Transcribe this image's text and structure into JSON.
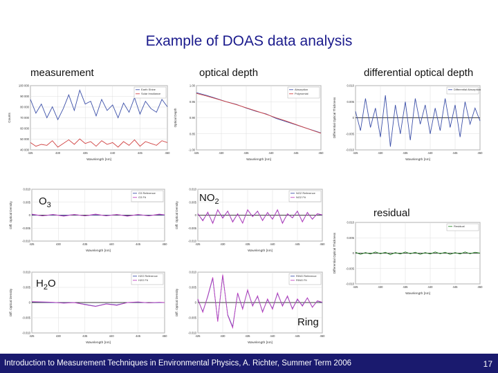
{
  "slide": {
    "title": "Example of DOAS data analysis",
    "labels": {
      "measurement": "measurement",
      "optical_depth": "optical depth",
      "differential": "differential optical depth",
      "o3_main": "O",
      "o3_sub": "3",
      "no2_main": "NO",
      "no2_sub": "2",
      "h2o_pre": "H",
      "h2o_sub": "2",
      "h2o_post": "O",
      "residual": "residual",
      "ring": "Ring"
    },
    "footer": "Introduction to Measurement Techniques in Environmental Physics, A. Richter, Summer Term 2006",
    "page_number": "17"
  },
  "colors": {
    "title": "#1a1a8c",
    "footer_bg": "#1a1a6e",
    "blue": "#3b4fa8",
    "red": "#d04040",
    "pink": "#c040c0",
    "green": "#2a8a2a"
  },
  "chart_data": [
    {
      "id": "measurement",
      "type": "line",
      "xlabel": "Wavelength [nm]",
      "ylabel": "Counts",
      "xlim": [
        425,
        450
      ],
      "ylim": [
        35000,
        105000
      ],
      "xticks": [
        "425",
        "430",
        "435",
        "440",
        "445",
        "450"
      ],
      "yticks": [
        "100 000",
        "90 000",
        "80 000",
        "70 000",
        "60 000",
        "50 000",
        "40 000"
      ],
      "legend": [
        "Earth Shine",
        "Solar Irradiance"
      ],
      "series": [
        {
          "name": "Earth Shine",
          "color": "#3b4fa8",
          "x": [
            425,
            426,
            427,
            428,
            429,
            430,
            431,
            432,
            433,
            434,
            435,
            436,
            437,
            438,
            439,
            440,
            441,
            442,
            443,
            444,
            445,
            446,
            447,
            448,
            449,
            450
          ],
          "y": [
            90000,
            75000,
            85000,
            70000,
            82000,
            68000,
            80000,
            95000,
            78000,
            100000,
            85000,
            88000,
            72000,
            90000,
            78000,
            84000,
            70000,
            86000,
            76000,
            92000,
            74000,
            88000,
            80000,
            76000,
            90000,
            82000
          ]
        },
        {
          "name": "Solar Irradiance",
          "color": "#d04040",
          "x": [
            425,
            426,
            427,
            428,
            429,
            430,
            431,
            432,
            433,
            434,
            435,
            436,
            437,
            438,
            439,
            440,
            441,
            442,
            443,
            444,
            445,
            446,
            447,
            448,
            449,
            450
          ],
          "y": [
            43000,
            39000,
            41000,
            40000,
            45000,
            38000,
            42000,
            46000,
            41000,
            47000,
            42000,
            44000,
            39000,
            45000,
            41000,
            43000,
            38000,
            44000,
            40000,
            46000,
            39000,
            44000,
            42000,
            40000,
            45000,
            43000
          ]
        }
      ]
    },
    {
      "id": "optical_depth",
      "type": "line",
      "xlabel": "Wavelength [nm]",
      "ylabel": "Optical Depth",
      "xlim": [
        425,
        450
      ],
      "ylim": [
        -1.0,
        1.0
      ],
      "xticks": [
        "425",
        "430",
        "435",
        "440",
        "445",
        "450"
      ],
      "yticks": [
        "1.00",
        "0.95",
        "0.90",
        "0.85",
        "-1.00"
      ],
      "legend": [
        "Absorption",
        "Polynomial"
      ],
      "series": [
        {
          "name": "Absorption",
          "color": "#3b4fa8",
          "x": [
            425,
            427,
            429,
            431,
            433,
            435,
            437,
            439,
            441,
            443,
            445,
            447,
            449,
            450
          ],
          "y": [
            0.78,
            0.7,
            0.6,
            0.5,
            0.42,
            0.3,
            0.2,
            0.12,
            -0.02,
            -0.12,
            -0.22,
            -0.32,
            -0.42,
            -0.47
          ]
        },
        {
          "name": "Polynomial",
          "color": "#d04040",
          "x": [
            425,
            427,
            429,
            431,
            433,
            435,
            437,
            439,
            441,
            443,
            445,
            447,
            449,
            450
          ],
          "y": [
            0.76,
            0.68,
            0.59,
            0.5,
            0.41,
            0.31,
            0.21,
            0.11,
            0.0,
            -0.1,
            -0.21,
            -0.32,
            -0.43,
            -0.48
          ]
        }
      ]
    },
    {
      "id": "differential",
      "type": "line",
      "xlabel": "Wavelength [nm]",
      "ylabel": "Differential Optical Thickness",
      "xlim": [
        425,
        450
      ],
      "ylim": [
        -0.01,
        0.01
      ],
      "xticks": [
        "425",
        "430",
        "435",
        "440",
        "445",
        "450"
      ],
      "yticks": [
        "0.010",
        "0.005",
        "0",
        "-0.005",
        "-0.010"
      ],
      "legend": [
        "Differential Absorption"
      ],
      "series": [
        {
          "name": "Differential Absorption",
          "color": "#3b4fa8",
          "x": [
            425,
            426,
            427,
            428,
            429,
            430,
            431,
            432,
            433,
            434,
            435,
            436,
            437,
            438,
            439,
            440,
            441,
            442,
            443,
            444,
            445,
            446,
            447,
            448,
            449,
            450
          ],
          "y": [
            0.002,
            -0.004,
            0.006,
            -0.003,
            0.003,
            -0.006,
            0.007,
            -0.009,
            0.004,
            -0.005,
            0.005,
            -0.007,
            0.006,
            -0.002,
            0.004,
            -0.005,
            0.003,
            -0.004,
            0.006,
            -0.003,
            0.004,
            -0.006,
            0.005,
            -0.002,
            0.003,
            -0.001
          ]
        }
      ]
    },
    {
      "id": "o3",
      "type": "line",
      "xlabel": "Wavelength [nm]",
      "ylabel": "Diff. Optical Density",
      "xlim": [
        425,
        450
      ],
      "ylim": [
        -0.01,
        0.01
      ],
      "xticks": [
        "425",
        "430",
        "435",
        "440",
        "445",
        "450"
      ],
      "yticks": [
        "0.010",
        "0.005",
        "0",
        "-0.005",
        "-0.010"
      ],
      "legend": [
        "O3 Reference",
        "O3 Fit"
      ],
      "series": [
        {
          "name": "O3 Reference",
          "color": "#3b4fa8",
          "x": [
            425,
            427,
            429,
            431,
            433,
            435,
            437,
            439,
            441,
            443,
            445,
            447,
            449,
            450
          ],
          "y": [
            0.0002,
            -0.0002,
            0.0001,
            -0.0001,
            0.0002,
            -0.0002,
            0.0001,
            -0.0001,
            0.0002,
            -0.0002,
            0.0001,
            -0.0001,
            0.0002,
            0.0
          ]
        },
        {
          "name": "O3 Fit",
          "color": "#c040c0",
          "x": [
            425,
            427,
            429,
            431,
            433,
            435,
            437,
            439,
            441,
            443,
            445,
            447,
            449,
            450
          ],
          "y": [
            0.0004,
            -0.0003,
            0.0003,
            -0.0004,
            0.0003,
            -0.0003,
            0.0004,
            -0.0003,
            0.0003,
            -0.0004,
            0.0003,
            -0.0003,
            0.0004,
            0.0001
          ]
        }
      ]
    },
    {
      "id": "no2",
      "type": "line",
      "xlabel": "Wavelength [nm]",
      "ylabel": "Diff. Optical Density",
      "xlim": [
        425,
        450
      ],
      "ylim": [
        -0.01,
        0.01
      ],
      "xticks": [
        "425",
        "430",
        "435",
        "440",
        "445",
        "450"
      ],
      "yticks": [
        "0.010",
        "0.005",
        "0",
        "-0.005",
        "-0.010"
      ],
      "legend": [
        "NO2 Reference",
        "NO2 Fit"
      ],
      "series": [
        {
          "name": "NO2 Reference",
          "color": "#3b4fa8",
          "x": [
            425,
            426,
            427,
            428,
            429,
            430,
            431,
            432,
            433,
            434,
            435,
            436,
            437,
            438,
            439,
            440,
            441,
            442,
            443,
            444,
            445,
            446,
            447,
            448,
            449,
            450
          ],
          "y": [
            0.0005,
            -0.002,
            0.001,
            -0.003,
            0.002,
            -0.001,
            0.0015,
            -0.0025,
            0.0005,
            -0.003,
            0.002,
            -0.0005,
            0.0015,
            -0.002,
            0.001,
            -0.0015,
            0.002,
            -0.003,
            0.0005,
            -0.001,
            0.0015,
            -0.0025,
            0.001,
            -0.0015,
            0.0005,
            0.0
          ]
        },
        {
          "name": "NO2 Fit",
          "color": "#c040c0",
          "x": [
            425,
            426,
            427,
            428,
            429,
            430,
            431,
            432,
            433,
            434,
            435,
            436,
            437,
            438,
            439,
            440,
            441,
            442,
            443,
            444,
            445,
            446,
            447,
            448,
            449,
            450
          ],
          "y": [
            0.0006,
            -0.0022,
            0.0012,
            -0.0032,
            0.0021,
            -0.0012,
            0.0016,
            -0.0027,
            0.0006,
            -0.0031,
            0.0021,
            -0.0006,
            0.0016,
            -0.0021,
            0.0011,
            -0.0016,
            0.0021,
            -0.0032,
            0.0006,
            -0.0011,
            0.0016,
            -0.0026,
            0.0011,
            -0.0016,
            0.0006,
            0.0001
          ]
        }
      ]
    },
    {
      "id": "residual",
      "type": "line",
      "xlabel": "Wavelength [nm]",
      "ylabel": "Differential Optical Thickness",
      "xlim": [
        425,
        450
      ],
      "ylim": [
        -0.01,
        0.01
      ],
      "xticks": [
        "425",
        "430",
        "435",
        "440",
        "445",
        "450"
      ],
      "yticks": [
        "0.010",
        "0.005",
        "0",
        "-0.005",
        "-0.010"
      ],
      "legend": [
        "Residual"
      ],
      "series": [
        {
          "name": "Residual",
          "color": "#2a8a2a",
          "x": [
            425,
            426,
            427,
            428,
            429,
            430,
            431,
            432,
            433,
            434,
            435,
            436,
            437,
            438,
            439,
            440,
            441,
            442,
            443,
            444,
            445,
            446,
            447,
            448,
            449,
            450
          ],
          "y": [
            0.0003,
            -0.0004,
            0.0002,
            -0.0003,
            0.0004,
            -0.0002,
            0.0003,
            -0.0005,
            0.0002,
            -0.0003,
            0.0004,
            -0.0002,
            0.0003,
            -0.0004,
            0.0002,
            -0.0003,
            0.0004,
            -0.0002,
            0.0003,
            -0.0004,
            0.0002,
            -0.0003,
            0.0004,
            -0.0002,
            0.0003,
            0.0
          ]
        }
      ]
    },
    {
      "id": "h2o",
      "type": "line",
      "xlabel": "Wavelength [nm]",
      "ylabel": "Diff. Optical Density",
      "xlim": [
        425,
        450
      ],
      "ylim": [
        -0.01,
        0.01
      ],
      "xticks": [
        "425",
        "430",
        "435",
        "440",
        "445",
        "450"
      ],
      "yticks": [
        "0.010",
        "0.005",
        "0",
        "-0.005",
        "-0.010"
      ],
      "legend": [
        "H2O Reference",
        "H2O Fit"
      ],
      "series": [
        {
          "name": "H2O Reference",
          "color": "#3b4fa8",
          "x": [
            425,
            427,
            429,
            431,
            433,
            435,
            437,
            439,
            441,
            443,
            445,
            447,
            449,
            450
          ],
          "y": [
            0.0002,
            0.0001,
            0.0,
            -0.0001,
            0.0,
            -0.0006,
            -0.0012,
            -0.0004,
            -0.0008,
            0.0,
            0.0001,
            -0.0001,
            0.0,
            0.0
          ]
        },
        {
          "name": "H2O Fit",
          "color": "#c040c0",
          "x": [
            425,
            427,
            429,
            431,
            433,
            435,
            437,
            439,
            441,
            443,
            445,
            447,
            449,
            450
          ],
          "y": [
            0.0003,
            0.0002,
            0.0001,
            -0.0002,
            0.0,
            -0.0007,
            -0.0013,
            -0.0005,
            -0.0009,
            0.0,
            0.0002,
            -0.0001,
            0.0001,
            0.0
          ]
        }
      ]
    },
    {
      "id": "ring",
      "type": "line",
      "xlabel": "Wavelength [nm]",
      "ylabel": "Diff. Optical Density",
      "xlim": [
        425,
        450
      ],
      "ylim": [
        -0.01,
        0.01
      ],
      "xticks": [
        "425",
        "430",
        "435",
        "440",
        "445",
        "450"
      ],
      "yticks": [
        "0.010",
        "0.005",
        "0",
        "-0.005",
        "-0.010"
      ],
      "legend": [
        "RING Reference",
        "RING Fit"
      ],
      "series": [
        {
          "name": "RING Reference",
          "color": "#3b4fa8",
          "x": [
            425,
            426,
            427,
            428,
            429,
            430,
            431,
            432,
            433,
            434,
            435,
            436,
            437,
            438,
            439,
            440,
            441,
            442,
            443,
            444,
            445,
            446,
            447,
            448,
            449,
            450
          ],
          "y": [
            0.001,
            -0.003,
            0.002,
            0.008,
            -0.006,
            0.009,
            -0.004,
            -0.008,
            0.003,
            -0.002,
            0.004,
            -0.001,
            0.002,
            -0.003,
            0.001,
            -0.002,
            0.003,
            -0.001,
            0.002,
            -0.002,
            0.001,
            -0.001,
            0.0015,
            -0.0015,
            0.0005,
            0.0
          ]
        },
        {
          "name": "RING Fit",
          "color": "#c040c0",
          "x": [
            425,
            426,
            427,
            428,
            429,
            430,
            431,
            432,
            433,
            434,
            435,
            436,
            437,
            438,
            439,
            440,
            441,
            442,
            443,
            444,
            445,
            446,
            447,
            448,
            449,
            450
          ],
          "y": [
            0.0012,
            -0.0032,
            0.0022,
            0.0083,
            -0.0063,
            0.0092,
            -0.0042,
            -0.0083,
            0.0032,
            -0.0022,
            0.0042,
            -0.0012,
            0.0022,
            -0.0032,
            0.0012,
            -0.0022,
            0.0032,
            -0.0012,
            0.0022,
            -0.0022,
            0.0012,
            -0.0012,
            0.0016,
            -0.0016,
            0.0006,
            0.0001
          ]
        }
      ]
    }
  ]
}
